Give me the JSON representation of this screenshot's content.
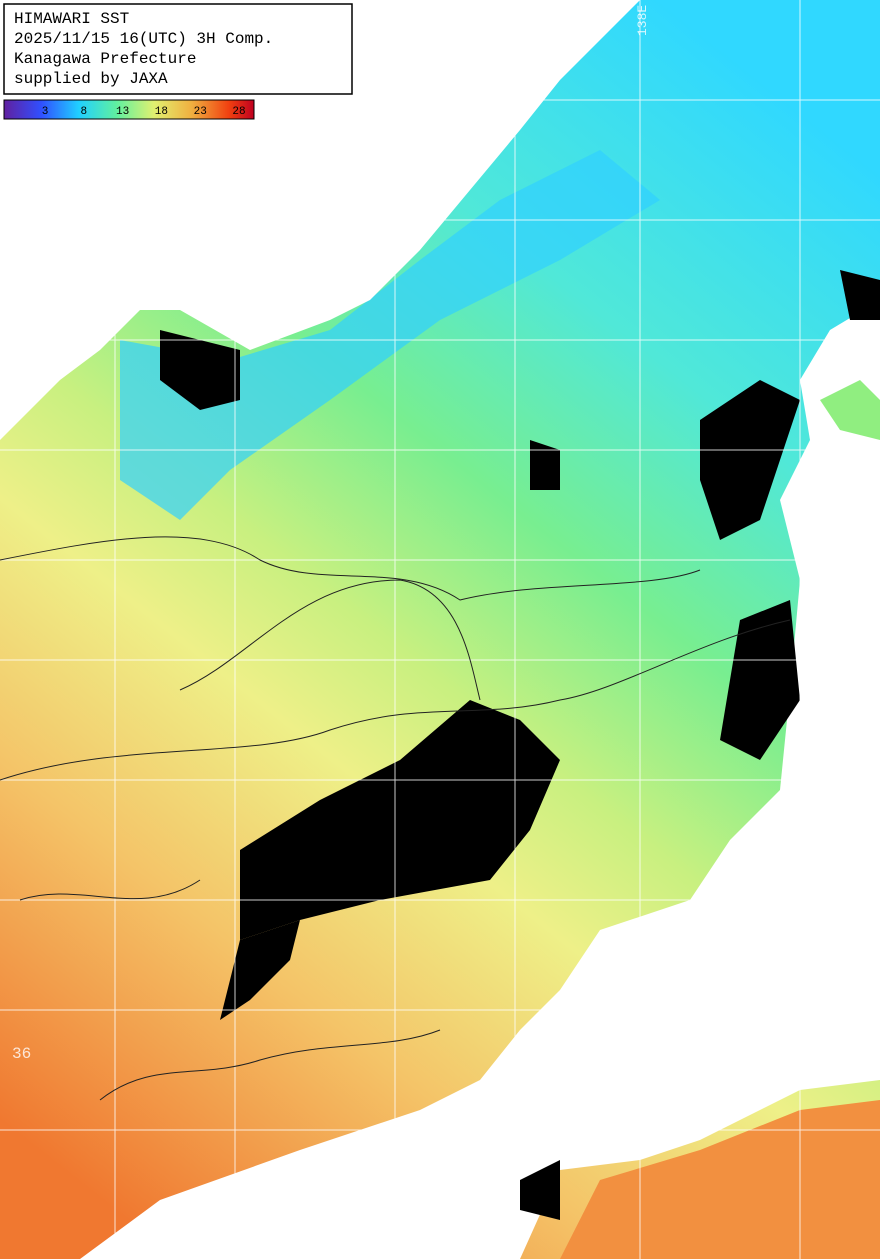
{
  "legend": {
    "lines": [
      "HIMAWARI SST",
      "2025/11/15 16(UTC) 3H Comp.",
      "Kanagawa Prefecture",
      "supplied by JAXA"
    ]
  },
  "colorbar": {
    "ticks": [
      3,
      8,
      13,
      18,
      23,
      28
    ]
  },
  "grid_labels": {
    "longitude": "138E",
    "latitude": "36"
  }
}
